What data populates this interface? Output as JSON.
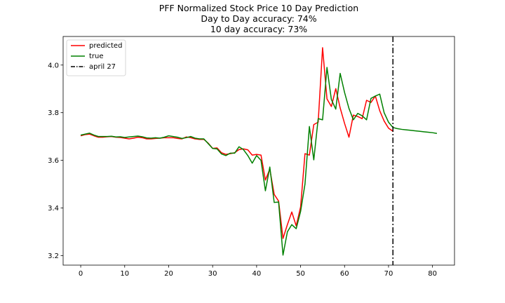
{
  "chart_data": {
    "type": "line",
    "title": [
      "PFF Normalized Stock Price 10 Day Prediction",
      "Day to Day accuracy: 74%",
      "10 day accuracy: 73%"
    ],
    "xlabel": "",
    "ylabel": "",
    "xlim": [
      -4,
      85
    ],
    "ylim": [
      3.16,
      4.12
    ],
    "xticks": [
      0,
      10,
      20,
      30,
      40,
      50,
      60,
      70,
      80
    ],
    "yticks": [
      3.2,
      3.4,
      3.6,
      3.8,
      4.0
    ],
    "ytick_labels": [
      "3.2",
      "3.4",
      "3.6",
      "3.8",
      "4.0"
    ],
    "grid": false,
    "legend_position": "top-left",
    "series": [
      {
        "name": "predicted",
        "color": "#ff0000",
        "x": [
          0,
          1,
          2,
          3,
          4,
          5,
          6,
          7,
          8,
          9,
          10,
          11,
          12,
          13,
          14,
          15,
          16,
          17,
          18,
          19,
          20,
          21,
          22,
          23,
          24,
          25,
          26,
          27,
          28,
          29,
          30,
          31,
          32,
          33,
          34,
          35,
          36,
          37,
          38,
          39,
          40,
          41,
          42,
          43,
          44,
          45,
          46,
          47,
          48,
          49,
          50,
          51,
          52,
          53,
          54,
          55,
          56,
          57,
          58,
          59,
          60,
          61,
          62,
          63,
          64,
          65,
          66,
          67,
          68,
          69,
          70,
          71
        ],
        "y": [
          3.703,
          3.708,
          3.71,
          3.703,
          3.697,
          3.697,
          3.699,
          3.7,
          3.697,
          3.696,
          3.693,
          3.69,
          3.693,
          3.697,
          3.695,
          3.69,
          3.69,
          3.692,
          3.693,
          3.695,
          3.695,
          3.695,
          3.692,
          3.69,
          3.698,
          3.695,
          3.69,
          3.688,
          3.688,
          3.672,
          3.65,
          3.652,
          3.632,
          3.625,
          3.628,
          3.632,
          3.645,
          3.648,
          3.644,
          3.622,
          3.625,
          3.622,
          3.517,
          3.563,
          3.457,
          3.429,
          3.272,
          3.33,
          3.383,
          3.325,
          3.404,
          3.628,
          3.622,
          3.75,
          3.76,
          4.073,
          3.858,
          3.826,
          3.901,
          3.82,
          3.755,
          3.697,
          3.79,
          3.784,
          3.775,
          3.852,
          3.843,
          3.87,
          3.808,
          3.765,
          3.735,
          3.722
        ]
      },
      {
        "name": "true",
        "color": "#008000",
        "x": [
          0,
          1,
          2,
          3,
          4,
          5,
          6,
          7,
          8,
          9,
          10,
          11,
          12,
          13,
          14,
          15,
          16,
          17,
          18,
          19,
          20,
          21,
          22,
          23,
          24,
          25,
          26,
          27,
          28,
          29,
          30,
          31,
          32,
          33,
          34,
          35,
          36,
          37,
          38,
          39,
          40,
          41,
          42,
          43,
          44,
          45,
          46,
          47,
          48,
          49,
          50,
          51,
          52,
          53,
          54,
          55,
          56,
          57,
          58,
          59,
          60,
          61,
          62,
          63,
          64,
          65,
          66,
          67,
          68,
          69,
          70,
          71,
          72,
          73,
          74,
          75,
          76,
          77,
          78,
          79,
          80,
          81
        ],
        "y": [
          3.706,
          3.71,
          3.714,
          3.706,
          3.7,
          3.7,
          3.7,
          3.701,
          3.698,
          3.699,
          3.696,
          3.698,
          3.7,
          3.702,
          3.699,
          3.694,
          3.693,
          3.695,
          3.693,
          3.697,
          3.703,
          3.7,
          3.697,
          3.692,
          3.695,
          3.7,
          3.693,
          3.69,
          3.69,
          3.67,
          3.65,
          3.648,
          3.627,
          3.62,
          3.63,
          3.63,
          3.657,
          3.645,
          3.62,
          3.588,
          3.62,
          3.6,
          3.472,
          3.572,
          3.423,
          3.425,
          3.202,
          3.3,
          3.33,
          3.313,
          3.385,
          3.5,
          3.742,
          3.602,
          3.775,
          3.77,
          3.99,
          3.855,
          3.815,
          3.965,
          3.885,
          3.818,
          3.77,
          3.797,
          3.787,
          3.77,
          3.86,
          3.87,
          3.878,
          3.8,
          3.76,
          3.738,
          3.733,
          3.73,
          3.728,
          3.726,
          3.724,
          3.722,
          3.72,
          3.718,
          3.716,
          3.713
        ]
      }
    ],
    "annotations": [
      {
        "type": "vline",
        "x": 71,
        "label": "april 27",
        "color": "#000000",
        "style": "dashdot"
      }
    ]
  }
}
